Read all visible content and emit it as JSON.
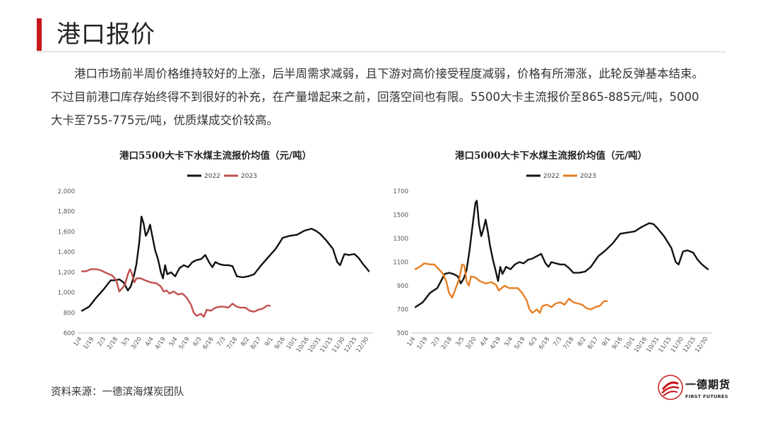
{
  "header": {
    "title": "港口报价"
  },
  "body": {
    "paragraph": "港口市场前半周价格维持较好的上涨，后半周需求减弱，且下游对高价接受程度减弱，价格有所滞涨，此轮反弹基本结束。不过目前港口库存始终得不到很好的补充，在产量增起来之前，回落空间也有限。5500大卡主流报价至865-885元/吨，5000大卡至755-775元/吨，优质煤成交价较高。"
  },
  "footer": {
    "source": "资料来源：一德滨海煤炭团队"
  },
  "logo": {
    "name_cn": "一德期货",
    "name_en": "FIRST FUTURES"
  },
  "colors": {
    "accent": "#c8161d",
    "line_2022": "#111111",
    "line_2023_left": "#c0504d",
    "line_2023_right": "#e67e22"
  },
  "chart_data": [
    {
      "type": "line",
      "title": "港口5500大卡下水煤主流报价均值（元/吨）",
      "xlabel": "",
      "ylabel": "",
      "x_ticks": [
        "1/4",
        "1/19",
        "2/3",
        "2/18",
        "3/5",
        "3/20",
        "4/4",
        "4/19",
        "5/4",
        "5/19",
        "6/3",
        "6/18",
        "7/3",
        "7/18",
        "8/2",
        "8/17",
        "9/1",
        "9/16",
        "10/1",
        "10/16",
        "10/31",
        "11/15",
        "11/30",
        "12/15",
        "12/30"
      ],
      "y_ticks": [
        "600",
        "800",
        "1,000",
        "1,200",
        "1,400",
        "1,600",
        "1,800",
        "2,000"
      ],
      "ylim": [
        600,
        2000
      ],
      "legend_position": "top-center",
      "grid": false,
      "series": [
        {
          "name": "2022",
          "color": "#111111",
          "points": [
            [
              0,
              820
            ],
            [
              0.5,
              860
            ],
            [
              1,
              950
            ],
            [
              1.5,
              1030
            ],
            [
              2,
              1120
            ],
            [
              2.3,
              1120
            ],
            [
              2.6,
              1130
            ],
            [
              2.9,
              1100
            ],
            [
              3.2,
              1020
            ],
            [
              3.4,
              1060
            ],
            [
              3.6,
              1150
            ],
            [
              3.8,
              1280
            ],
            [
              4,
              1500
            ],
            [
              4.15,
              1750
            ],
            [
              4.3,
              1680
            ],
            [
              4.45,
              1560
            ],
            [
              4.6,
              1600
            ],
            [
              4.75,
              1670
            ],
            [
              4.9,
              1560
            ],
            [
              5.1,
              1420
            ],
            [
              5.3,
              1330
            ],
            [
              5.5,
              1200
            ],
            [
              5.65,
              1140
            ],
            [
              5.8,
              1270
            ],
            [
              5.95,
              1180
            ],
            [
              6.2,
              1200
            ],
            [
              6.5,
              1160
            ],
            [
              6.8,
              1240
            ],
            [
              7.1,
              1270
            ],
            [
              7.4,
              1250
            ],
            [
              7.7,
              1300
            ],
            [
              8,
              1320
            ],
            [
              8.3,
              1330
            ],
            [
              8.6,
              1370
            ],
            [
              8.9,
              1290
            ],
            [
              9.1,
              1250
            ],
            [
              9.3,
              1300
            ],
            [
              9.6,
              1280
            ],
            [
              9.9,
              1270
            ],
            [
              10.2,
              1270
            ],
            [
              10.5,
              1260
            ],
            [
              10.8,
              1160
            ],
            [
              11.2,
              1150
            ],
            [
              11.6,
              1160
            ],
            [
              12,
              1180
            ],
            [
              12.5,
              1270
            ],
            [
              13,
              1350
            ],
            [
              13.5,
              1430
            ],
            [
              14,
              1540
            ],
            [
              14.5,
              1560
            ],
            [
              15,
              1570
            ],
            [
              15.5,
              1610
            ],
            [
              16,
              1630
            ],
            [
              16.3,
              1610
            ],
            [
              16.6,
              1580
            ],
            [
              17,
              1520
            ],
            [
              17.5,
              1430
            ],
            [
              17.8,
              1300
            ],
            [
              18,
              1270
            ],
            [
              18.3,
              1380
            ],
            [
              18.6,
              1370
            ],
            [
              19,
              1380
            ],
            [
              19.3,
              1340
            ],
            [
              19.6,
              1280
            ],
            [
              19.9,
              1230
            ],
            [
              20,
              1210
            ]
          ]
        },
        {
          "name": "2023",
          "color": "#c0504d",
          "points": [
            [
              0,
              1210
            ],
            [
              0.3,
              1210
            ],
            [
              0.6,
              1230
            ],
            [
              1,
              1230
            ],
            [
              1.3,
              1220
            ],
            [
              1.6,
              1200
            ],
            [
              1.9,
              1180
            ],
            [
              2.1,
              1170
            ],
            [
              2.4,
              1120
            ],
            [
              2.6,
              1010
            ],
            [
              2.8,
              1040
            ],
            [
              3.0,
              1080
            ],
            [
              3.2,
              1180
            ],
            [
              3.35,
              1230
            ],
            [
              3.5,
              1180
            ],
            [
              3.65,
              1100
            ],
            [
              3.8,
              1140
            ],
            [
              4.1,
              1140
            ],
            [
              4.4,
              1120
            ],
            [
              4.8,
              1100
            ],
            [
              5.2,
              1090
            ],
            [
              5.5,
              1060
            ],
            [
              5.7,
              1010
            ],
            [
              5.9,
              1020
            ],
            [
              6.1,
              990
            ],
            [
              6.4,
              1010
            ],
            [
              6.7,
              980
            ],
            [
              7,
              990
            ],
            [
              7.3,
              950
            ],
            [
              7.6,
              880
            ],
            [
              7.8,
              800
            ],
            [
              8,
              770
            ],
            [
              8.3,
              790
            ],
            [
              8.5,
              760
            ],
            [
              8.7,
              830
            ],
            [
              9,
              820
            ],
            [
              9.3,
              850
            ],
            [
              9.6,
              860
            ],
            [
              9.9,
              860
            ],
            [
              10.2,
              850
            ],
            [
              10.5,
              890
            ],
            [
              10.8,
              860
            ],
            [
              11.1,
              850
            ],
            [
              11.4,
              850
            ],
            [
              11.7,
              820
            ],
            [
              12,
              810
            ],
            [
              12.3,
              830
            ],
            [
              12.6,
              840
            ],
            [
              12.9,
              870
            ],
            [
              13.1,
              870
            ]
          ]
        }
      ]
    },
    {
      "type": "line",
      "title": "港口5000大卡下水煤主流报价均值（元/吨）",
      "xlabel": "",
      "ylabel": "",
      "x_ticks": [
        "1/4",
        "1/19",
        "2/3",
        "2/18",
        "3/5",
        "3/20",
        "4/4",
        "4/19",
        "5/4",
        "5/19",
        "6/3",
        "6/18",
        "7/3",
        "7/18",
        "8/2",
        "8/17",
        "9/1",
        "9/16",
        "10/1",
        "10/16",
        "10/31",
        "11/15",
        "11/30",
        "12/15",
        "12/30"
      ],
      "y_ticks": [
        "500",
        "700",
        "900",
        "1100",
        "1300",
        "1500",
        "1700"
      ],
      "ylim": [
        500,
        1700
      ],
      "legend_position": "top-center",
      "grid": false,
      "series": [
        {
          "name": "2022",
          "color": "#111111",
          "points": [
            [
              0,
              720
            ],
            [
              0.5,
              760
            ],
            [
              1,
              840
            ],
            [
              1.5,
              880
            ],
            [
              2,
              1000
            ],
            [
              2.3,
              1010
            ],
            [
              2.6,
              1000
            ],
            [
              2.9,
              980
            ],
            [
              3.1,
              920
            ],
            [
              3.3,
              960
            ],
            [
              3.5,
              1030
            ],
            [
              3.7,
              1200
            ],
            [
              3.9,
              1400
            ],
            [
              4.1,
              1600
            ],
            [
              4.2,
              1620
            ],
            [
              4.35,
              1420
            ],
            [
              4.5,
              1320
            ],
            [
              4.65,
              1380
            ],
            [
              4.8,
              1460
            ],
            [
              4.95,
              1360
            ],
            [
              5.1,
              1240
            ],
            [
              5.3,
              1120
            ],
            [
              5.5,
              1020
            ],
            [
              5.65,
              940
            ],
            [
              5.8,
              1060
            ],
            [
              5.95,
              1000
            ],
            [
              6.2,
              1060
            ],
            [
              6.5,
              1040
            ],
            [
              6.8,
              1080
            ],
            [
              7.1,
              1100
            ],
            [
              7.4,
              1090
            ],
            [
              7.7,
              1120
            ],
            [
              8,
              1130
            ],
            [
              8.3,
              1150
            ],
            [
              8.6,
              1170
            ],
            [
              8.9,
              1090
            ],
            [
              9.1,
              1060
            ],
            [
              9.3,
              1100
            ],
            [
              9.6,
              1090
            ],
            [
              9.9,
              1080
            ],
            [
              10.2,
              1080
            ],
            [
              10.5,
              1050
            ],
            [
              10.8,
              1010
            ],
            [
              11.2,
              1010
            ],
            [
              11.6,
              1020
            ],
            [
              12,
              1060
            ],
            [
              12.5,
              1150
            ],
            [
              13,
              1200
            ],
            [
              13.5,
              1260
            ],
            [
              14,
              1340
            ],
            [
              14.5,
              1350
            ],
            [
              15,
              1360
            ],
            [
              15.5,
              1400
            ],
            [
              16,
              1430
            ],
            [
              16.3,
              1420
            ],
            [
              16.6,
              1380
            ],
            [
              17,
              1320
            ],
            [
              17.5,
              1220
            ],
            [
              17.8,
              1100
            ],
            [
              18,
              1080
            ],
            [
              18.3,
              1190
            ],
            [
              18.6,
              1200
            ],
            [
              19,
              1180
            ],
            [
              19.3,
              1120
            ],
            [
              19.6,
              1080
            ],
            [
              19.9,
              1050
            ],
            [
              20,
              1040
            ]
          ]
        },
        {
          "name": "2023",
          "color": "#e67e22",
          "points": [
            [
              0,
              1040
            ],
            [
              0.3,
              1060
            ],
            [
              0.6,
              1090
            ],
            [
              1,
              1080
            ],
            [
              1.3,
              1080
            ],
            [
              1.6,
              1040
            ],
            [
              1.9,
              1000
            ],
            [
              2.1,
              940
            ],
            [
              2.3,
              840
            ],
            [
              2.5,
              800
            ],
            [
              2.7,
              860
            ],
            [
              3.0,
              960
            ],
            [
              3.2,
              1080
            ],
            [
              3.35,
              1070
            ],
            [
              3.5,
              940
            ],
            [
              3.65,
              900
            ],
            [
              3.8,
              980
            ],
            [
              4.1,
              970
            ],
            [
              4.4,
              940
            ],
            [
              4.8,
              920
            ],
            [
              5.2,
              930
            ],
            [
              5.5,
              910
            ],
            [
              5.7,
              860
            ],
            [
              5.9,
              880
            ],
            [
              6.1,
              900
            ],
            [
              6.4,
              880
            ],
            [
              6.7,
              880
            ],
            [
              7,
              880
            ],
            [
              7.3,
              840
            ],
            [
              7.6,
              780
            ],
            [
              7.8,
              700
            ],
            [
              8,
              670
            ],
            [
              8.3,
              700
            ],
            [
              8.5,
              670
            ],
            [
              8.7,
              730
            ],
            [
              9,
              740
            ],
            [
              9.3,
              720
            ],
            [
              9.6,
              750
            ],
            [
              9.9,
              760
            ],
            [
              10.2,
              740
            ],
            [
              10.5,
              790
            ],
            [
              10.8,
              760
            ],
            [
              11.1,
              750
            ],
            [
              11.4,
              740
            ],
            [
              11.7,
              710
            ],
            [
              12,
              700
            ],
            [
              12.3,
              720
            ],
            [
              12.6,
              730
            ],
            [
              12.9,
              770
            ],
            [
              13.1,
              770
            ]
          ]
        }
      ]
    }
  ]
}
